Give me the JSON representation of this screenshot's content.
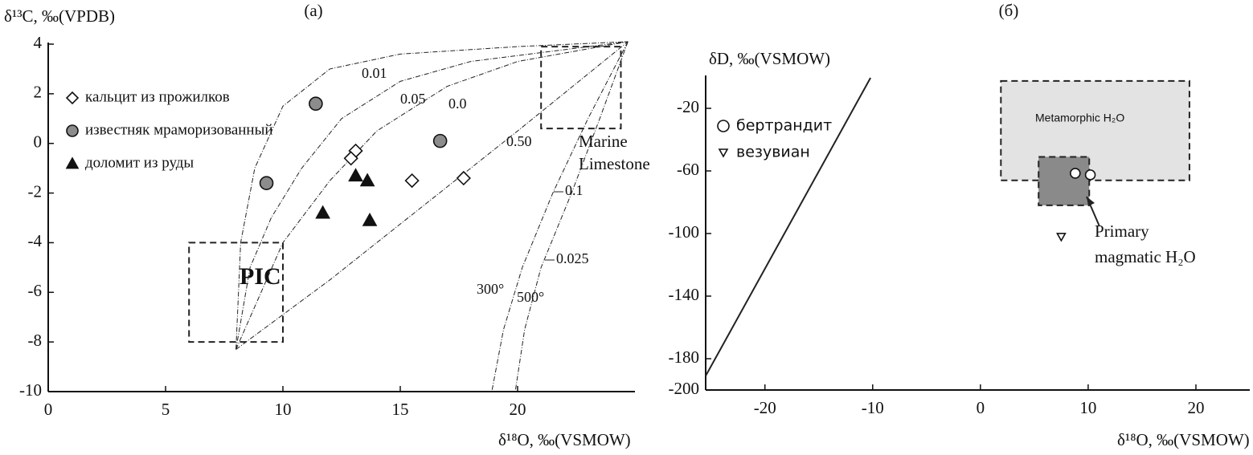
{
  "chart_data": [
    {
      "type": "scatter",
      "title": "(a)",
      "x_label": "δ¹⁸O, ‰(VSMOW)",
      "y_label": "δ¹³C, ‰(VPDB)",
      "xlim": [
        0,
        25
      ],
      "ylim": [
        -10,
        4
      ],
      "xticks": [
        0,
        5,
        10,
        15,
        20
      ],
      "yticks": [
        -10,
        -8,
        -6,
        -4,
        -2,
        0,
        2,
        4
      ],
      "series": [
        {
          "name": "кальцит из прожилков",
          "marker": "diamond",
          "color": "#ffffff",
          "x": [
            13.1,
            12.9,
            15.5,
            17.7
          ],
          "values": [
            -0.3,
            -0.6,
            -1.5,
            -1.4
          ]
        },
        {
          "name": "известняк мраморизованный",
          "marker": "circle",
          "color": "#8c8c8c",
          "x": [
            11.4,
            16.7,
            9.3
          ],
          "values": [
            1.6,
            0.1,
            -1.6
          ]
        },
        {
          "name": "доломит из руды",
          "marker": "triangle-up",
          "color": "#111111",
          "x": [
            13.1,
            13.6,
            11.7,
            13.7
          ],
          "values": [
            -1.3,
            -1.5,
            -2.8,
            -3.1
          ]
        }
      ],
      "curves": [
        {
          "label": "0.01",
          "x": [
            8,
            8.2,
            8.8,
            10,
            12,
            15,
            20,
            24.7
          ],
          "values": [
            -8.3,
            -4,
            -1,
            1.5,
            3,
            3.6,
            3.9,
            4.1
          ]
        },
        {
          "label": "0.05",
          "x": [
            8,
            8.6,
            9.5,
            10.8,
            12.5,
            15,
            18,
            24.7
          ],
          "values": [
            -8.3,
            -5,
            -3,
            -1,
            1,
            2.5,
            3.3,
            4.1
          ]
        },
        {
          "label": "0.0",
          "x": [
            8,
            10,
            12,
            14,
            17,
            20,
            24.7
          ],
          "values": [
            -8.3,
            -4,
            -1.5,
            0.5,
            2.3,
            3.3,
            4.1
          ]
        },
        {
          "label": "0.50",
          "x": [
            8,
            12,
            16,
            20,
            24.7
          ],
          "values": [
            -8.3,
            -5.5,
            -2.5,
            0.5,
            4.1
          ]
        },
        {
          "label": "300°",
          "x": [
            24.7,
            23,
            21.5,
            20.2,
            19.4,
            18.9
          ],
          "values": [
            4.1,
            1,
            -2,
            -5,
            -7.5,
            -10
          ]
        },
        {
          "label": "500°",
          "x": [
            24.7,
            23.5,
            22.3,
            21,
            20.3,
            19.9
          ],
          "values": [
            4.1,
            1,
            -2,
            -5,
            -7.5,
            -10
          ]
        }
      ],
      "annotations": [
        "0.1",
        "0.025"
      ],
      "regions": [
        {
          "label": [
            "PIC"
          ],
          "x": [
            6,
            10
          ],
          "y": [
            -8,
            -4
          ]
        },
        {
          "label": [
            "Marine",
            "Limestone"
          ],
          "x": [
            21,
            24.4
          ],
          "y": [
            0.6,
            3.9
          ]
        }
      ]
    },
    {
      "type": "scatter",
      "title": "(б)",
      "x_label": "δ¹⁸O, ‰(VSMOW)",
      "y_label": "δD, ‰(VSMOW)",
      "xlim": [
        -25.5,
        25
      ],
      "ylim": [
        -200,
        0
      ],
      "xticks": [
        -20,
        -10,
        0,
        10,
        20
      ],
      "yticks": [
        -20,
        -60,
        -100,
        -140,
        -180,
        -200
      ],
      "series": [
        {
          "name": "бертрандит",
          "marker": "circle",
          "color": "#ffffff",
          "x": [
            8.8,
            10.2
          ],
          "values": [
            -61.5,
            -62.5
          ]
        },
        {
          "name": "везувиан",
          "marker": "triangle-down",
          "color": "#ffffff",
          "x": [
            7.5
          ],
          "values": [
            -102
          ]
        }
      ],
      "curves": [
        {
          "x": [
            -25.5,
            -10.2
          ],
          "values": [
            -191,
            -0.5
          ]
        }
      ],
      "annotations": [],
      "regions": [
        {
          "label": [
            "Metamorphic H₂O"
          ],
          "x": [
            1.9,
            19.4
          ],
          "y": [
            -2.5,
            -66
          ],
          "color": "#e3e3e3"
        },
        {
          "label": [
            "Primary",
            "magmatic H₂O"
          ],
          "x": [
            5.4,
            10.1
          ],
          "y": [
            -51,
            -82
          ],
          "color": "#8a8a8a"
        }
      ]
    }
  ]
}
